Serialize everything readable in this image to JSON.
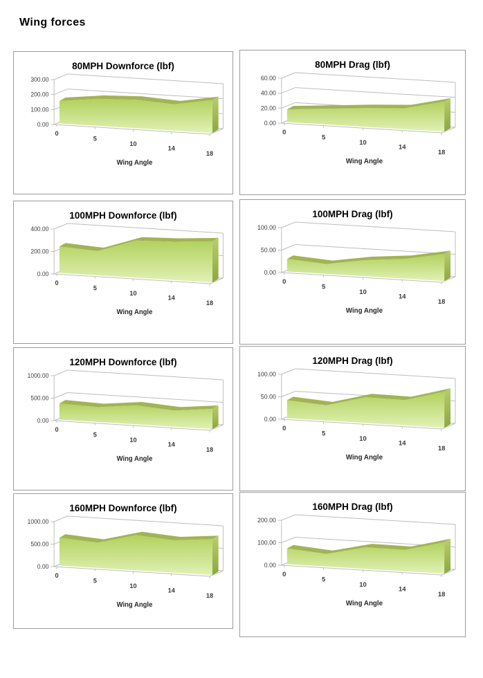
{
  "page": {
    "title": "Wing forces"
  },
  "colors": {
    "area_top": "#b2d15e",
    "area_bottom": "#e1f1b5",
    "ribbon": "#a2b355",
    "cap_top": "#b9ce6c",
    "cap_bottom": "#8da63f",
    "grid": "#bdbdbd",
    "axis_text": "#3a3a3a",
    "chart_border": "#9b9b9b"
  },
  "chart_data": [
    {
      "type": "area",
      "title": "80MPH Downforce (lbf)",
      "categories": [
        "0",
        "5",
        "10",
        "14",
        "18"
      ],
      "values": [
        150,
        180,
        190,
        175,
        220
      ],
      "x_axis_title": "Wing Angle",
      "y_ticks": [
        "300.00",
        "200.00",
        "100.00",
        "0.00"
      ],
      "ylim": [
        0,
        300
      ]
    },
    {
      "type": "area",
      "title": "80MPH Drag (lbf)",
      "categories": [
        "0",
        "5",
        "10",
        "14",
        "18"
      ],
      "values": [
        17,
        21,
        25,
        28,
        40
      ],
      "x_axis_title": "Wing Angle",
      "y_ticks": [
        "60.00",
        "40.00",
        "20.00",
        "0.00"
      ],
      "ylim": [
        0,
        60
      ]
    },
    {
      "type": "area",
      "title": "100MPH Downforce (lbf)",
      "categories": [
        "0",
        "5",
        "10",
        "14",
        "18"
      ],
      "values": [
        235,
        215,
        330,
        340,
        365
      ],
      "x_axis_title": "Wing Angle",
      "y_ticks": [
        "400.00",
        "200.00",
        "0.00"
      ],
      "ylim": [
        0,
        400
      ]
    },
    {
      "type": "area",
      "title": "100MPH Drag (lbf)",
      "categories": [
        "0",
        "5",
        "10",
        "14",
        "18"
      ],
      "values": [
        28,
        22,
        36,
        44,
        60
      ],
      "x_axis_title": "Wing Angle",
      "y_ticks": [
        "100.00",
        "50.00",
        "0.00"
      ],
      "ylim": [
        0,
        100
      ]
    },
    {
      "type": "area",
      "title": "120MPH Downforce (lbf)",
      "categories": [
        "0",
        "5",
        "10",
        "14",
        "18"
      ],
      "values": [
        360,
        330,
        420,
        360,
        450
      ],
      "x_axis_title": "Wing Angle",
      "y_ticks": [
        "1000.00",
        "500.00",
        "0.00"
      ],
      "ylim": [
        0,
        1000
      ]
    },
    {
      "type": "area",
      "title": "120MPH Drag (lbf)",
      "categories": [
        "0",
        "5",
        "10",
        "14",
        "18"
      ],
      "values": [
        40,
        34,
        57,
        56,
        80
      ],
      "x_axis_title": "Wing Angle",
      "y_ticks": [
        "100.00",
        "50.00",
        "0.00"
      ],
      "ylim": [
        0,
        100
      ]
    },
    {
      "type": "area",
      "title": "160MPH Downforce (lbf)",
      "categories": [
        "0",
        "5",
        "10",
        "14",
        "18"
      ],
      "values": [
        620,
        560,
        780,
        720,
        800
      ],
      "x_axis_title": "Wing Angle",
      "y_ticks": [
        "1000.00",
        "500.00",
        "0.00"
      ],
      "ylim": [
        0,
        1000
      ]
    },
    {
      "type": "area",
      "title": "160MPH Drag (lbf)",
      "categories": [
        "0",
        "5",
        "10",
        "14",
        "18"
      ],
      "values": [
        70,
        56,
        96,
        95,
        140
      ],
      "x_axis_title": "Wing Angle",
      "y_ticks": [
        "200.00",
        "100.00",
        "0.00"
      ],
      "ylim": [
        0,
        200
      ]
    }
  ]
}
